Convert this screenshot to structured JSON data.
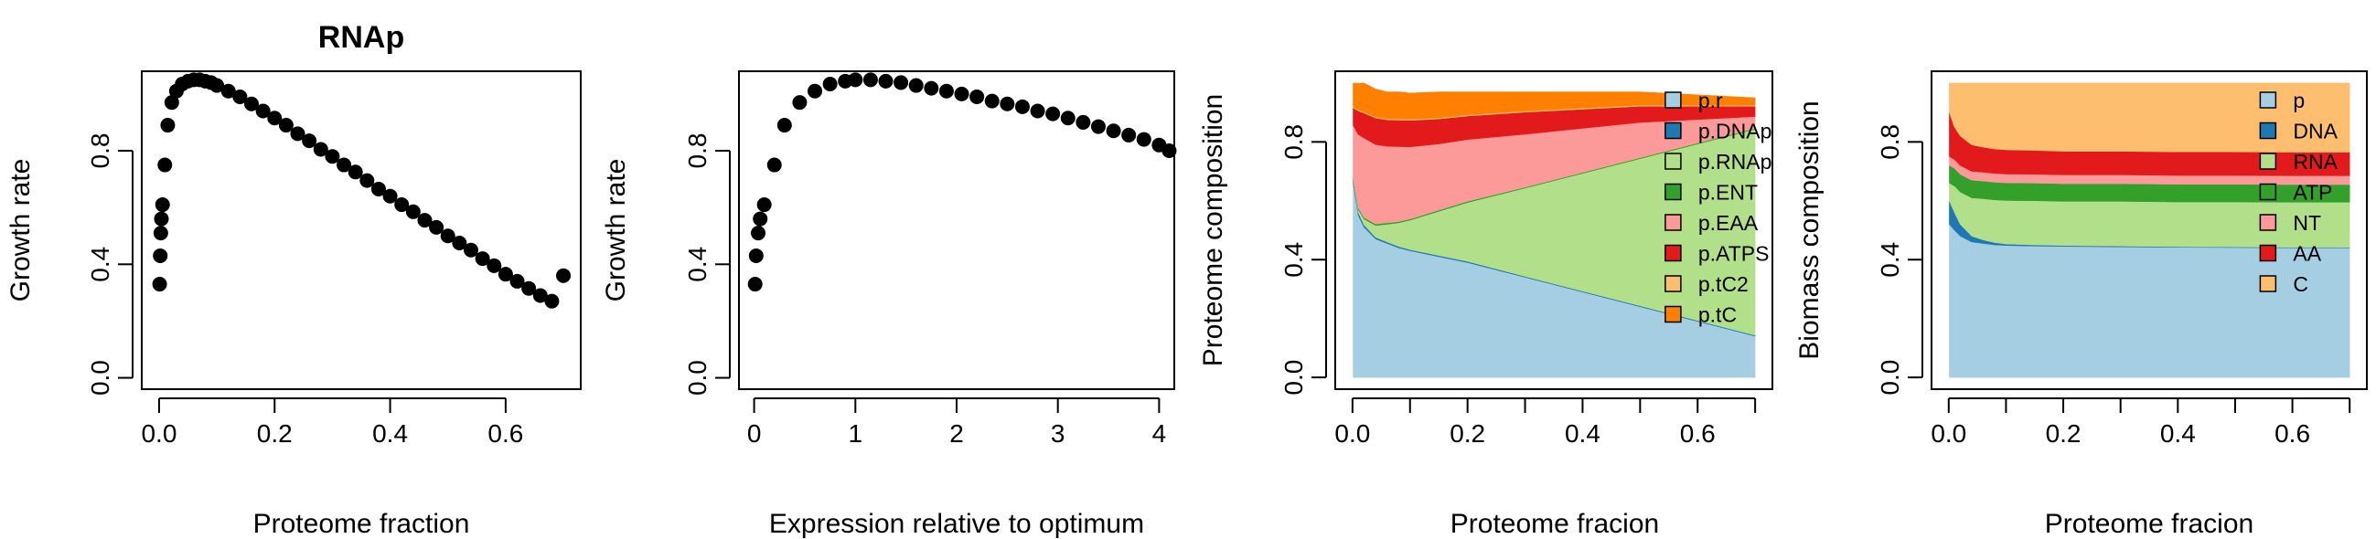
{
  "chart_data": [
    {
      "type": "scatter",
      "title": "RNAp",
      "xlabel": "Proteome fraction",
      "ylabel": "Growth rate",
      "xlim": [
        -0.03,
        0.73
      ],
      "ylim": [
        -0.04,
        1.08
      ],
      "xticks": [
        "0.0",
        "0.2",
        "0.4",
        "0.6"
      ],
      "xtick_values": [
        0,
        0.2,
        0.4,
        0.6
      ],
      "yticks": [
        "0.0",
        "0.4",
        "0.8"
      ],
      "ytick_values": [
        0,
        0.4,
        0.8
      ],
      "x": [
        0.001,
        0.002,
        0.003,
        0.004,
        0.006,
        0.01,
        0.015,
        0.022,
        0.03,
        0.04,
        0.05,
        0.06,
        0.07,
        0.08,
        0.09,
        0.1,
        0.12,
        0.14,
        0.16,
        0.18,
        0.2,
        0.22,
        0.24,
        0.26,
        0.28,
        0.3,
        0.32,
        0.34,
        0.36,
        0.38,
        0.4,
        0.42,
        0.44,
        0.46,
        0.48,
        0.5,
        0.52,
        0.54,
        0.56,
        0.58,
        0.6,
        0.62,
        0.64,
        0.66,
        0.68,
        0.7
      ],
      "y": [
        0.33,
        0.43,
        0.51,
        0.56,
        0.61,
        0.75,
        0.89,
        0.97,
        1.01,
        1.035,
        1.045,
        1.05,
        1.05,
        1.045,
        1.04,
        1.03,
        1.01,
        0.99,
        0.965,
        0.94,
        0.915,
        0.89,
        0.86,
        0.835,
        0.805,
        0.78,
        0.75,
        0.725,
        0.695,
        0.665,
        0.64,
        0.61,
        0.585,
        0.555,
        0.53,
        0.5,
        0.475,
        0.45,
        0.42,
        0.395,
        0.365,
        0.34,
        0.315,
        0.29,
        0.27,
        0.36
      ]
    },
    {
      "type": "scatter",
      "title": "",
      "xlabel": "Expression relative to optimum",
      "ylabel": "Growth rate",
      "xlim": [
        -0.15,
        4.15
      ],
      "ylim": [
        -0.04,
        1.08
      ],
      "xticks": [
        "0",
        "1",
        "2",
        "3",
        "4"
      ],
      "xtick_values": [
        0,
        1,
        2,
        3,
        4
      ],
      "yticks": [
        "0.0",
        "0.4",
        "0.8"
      ],
      "ytick_values": [
        0,
        0.4,
        0.8
      ],
      "x": [
        0.01,
        0.02,
        0.04,
        0.06,
        0.1,
        0.2,
        0.3,
        0.45,
        0.6,
        0.75,
        0.9,
        1.0,
        1.15,
        1.3,
        1.45,
        1.6,
        1.75,
        1.9,
        2.05,
        2.2,
        2.35,
        2.5,
        2.65,
        2.8,
        2.95,
        3.1,
        3.25,
        3.4,
        3.55,
        3.7,
        3.85,
        4.0,
        4.1
      ],
      "y": [
        0.33,
        0.43,
        0.51,
        0.56,
        0.61,
        0.75,
        0.89,
        0.97,
        1.01,
        1.035,
        1.045,
        1.05,
        1.05,
        1.045,
        1.04,
        1.03,
        1.02,
        1.01,
        1.0,
        0.99,
        0.975,
        0.965,
        0.955,
        0.94,
        0.93,
        0.915,
        0.9,
        0.885,
        0.87,
        0.855,
        0.84,
        0.82,
        0.8
      ]
    },
    {
      "type": "area",
      "title": "",
      "xlabel": "Proteome fracion",
      "ylabel": "Proteome composition",
      "xlim": [
        -0.03,
        0.73
      ],
      "ylim": [
        -0.04,
        1.04
      ],
      "xticks": [
        "0.0",
        "0.2",
        "0.4",
        "0.6"
      ],
      "xtick_values": [
        0,
        0.2,
        0.4,
        0.6
      ],
      "xminor_ticks": [
        0.1,
        0.3,
        0.5,
        0.7
      ],
      "yticks": [
        "0.0",
        "0.4",
        "0.8"
      ],
      "ytick_values": [
        0,
        0.4,
        0.8
      ],
      "legend_position": "top-right",
      "x": [
        0.001,
        0.01,
        0.02,
        0.04,
        0.06,
        0.08,
        0.1,
        0.15,
        0.2,
        0.3,
        0.4,
        0.5,
        0.6,
        0.7
      ],
      "series": [
        {
          "name": "p.r",
          "color": "#A6CEE3",
          "values": [
            0.66,
            0.55,
            0.51,
            0.47,
            0.455,
            0.44,
            0.43,
            0.41,
            0.39,
            0.34,
            0.29,
            0.24,
            0.19,
            0.14
          ]
        },
        {
          "name": "p.DNAp",
          "color": "#1F78B4",
          "values": [
            0.01,
            0.01,
            0.008,
            0.006,
            0.005,
            0.005,
            0.004,
            0.004,
            0.004,
            0.003,
            0.003,
            0.003,
            0.003,
            0.003
          ]
        },
        {
          "name": "p.RNAp",
          "color": "#B2DF8A",
          "values": [
            0.001,
            0.01,
            0.02,
            0.04,
            0.06,
            0.08,
            0.1,
            0.15,
            0.2,
            0.3,
            0.4,
            0.5,
            0.6,
            0.7
          ]
        },
        {
          "name": "p.ENT",
          "color": "#33A02C",
          "values": [
            0.005,
            0.005,
            0.005,
            0.005,
            0.005,
            0.004,
            0.004,
            0.004,
            0.004,
            0.003,
            0.003,
            0.003,
            0.003,
            0.003
          ]
        },
        {
          "name": "p.EAA",
          "color": "#FB9A99",
          "values": [
            0.18,
            0.25,
            0.27,
            0.27,
            0.26,
            0.255,
            0.245,
            0.225,
            0.21,
            0.18,
            0.15,
            0.12,
            0.08,
            0.04
          ]
        },
        {
          "name": "p.ATPS",
          "color": "#E31A1C",
          "values": [
            0.06,
            0.08,
            0.085,
            0.09,
            0.09,
            0.09,
            0.09,
            0.085,
            0.08,
            0.075,
            0.065,
            0.055,
            0.045,
            0.035
          ]
        },
        {
          "name": "p.tC2",
          "color": "#FDBF6F",
          "values": [
            0.004,
            0.004,
            0.004,
            0.004,
            0.004,
            0.004,
            0.004,
            0.004,
            0.004,
            0.004,
            0.004,
            0.004,
            0.004,
            0.004
          ]
        },
        {
          "name": "p.tC",
          "color": "#FF7F00",
          "values": [
            0.08,
            0.09,
            0.098,
            0.095,
            0.091,
            0.092,
            0.089,
            0.088,
            0.078,
            0.065,
            0.055,
            0.045,
            0.035,
            0.025
          ]
        }
      ]
    },
    {
      "type": "area",
      "title": "",
      "xlabel": "Proteome fracion",
      "ylabel": "Biomass composition",
      "xlim": [
        -0.03,
        0.73
      ],
      "ylim": [
        -0.04,
        1.04
      ],
      "xticks": [
        "0.0",
        "0.2",
        "0.4",
        "0.6"
      ],
      "xtick_values": [
        0,
        0.2,
        0.4,
        0.6
      ],
      "xminor_ticks": [
        0.1,
        0.3,
        0.5,
        0.7
      ],
      "yticks": [
        "0.0",
        "0.4",
        "0.8"
      ],
      "ytick_values": [
        0,
        0.4,
        0.8
      ],
      "legend_position": "top-right",
      "x": [
        0.001,
        0.01,
        0.02,
        0.04,
        0.06,
        0.08,
        0.1,
        0.15,
        0.2,
        0.3,
        0.4,
        0.5,
        0.6,
        0.7
      ],
      "series": [
        {
          "name": "p",
          "color": "#A6CEE3",
          "values": [
            0.52,
            0.5,
            0.48,
            0.46,
            0.455,
            0.45,
            0.448,
            0.446,
            0.445,
            0.443,
            0.442,
            0.441,
            0.44,
            0.44
          ]
        },
        {
          "name": "DNA",
          "color": "#1F78B4",
          "values": [
            0.08,
            0.06,
            0.04,
            0.02,
            0.012,
            0.008,
            0.005,
            0.004,
            0.003,
            0.003,
            0.002,
            0.002,
            0.002,
            0.002
          ]
        },
        {
          "name": "RNA",
          "color": "#B2DF8A",
          "values": [
            0.06,
            0.09,
            0.11,
            0.13,
            0.14,
            0.145,
            0.148,
            0.15,
            0.15,
            0.152,
            0.152,
            0.153,
            0.153,
            0.153
          ]
        },
        {
          "name": "ATP",
          "color": "#33A02C",
          "values": [
            0.06,
            0.06,
            0.06,
            0.06,
            0.06,
            0.06,
            0.06,
            0.06,
            0.06,
            0.06,
            0.06,
            0.06,
            0.06,
            0.06
          ]
        },
        {
          "name": "NT",
          "color": "#FB9A99",
          "values": [
            0.03,
            0.03,
            0.03,
            0.03,
            0.03,
            0.03,
            0.03,
            0.03,
            0.03,
            0.03,
            0.03,
            0.03,
            0.03,
            0.03
          ]
        },
        {
          "name": "AA",
          "color": "#E31A1C",
          "values": [
            0.15,
            0.11,
            0.1,
            0.09,
            0.085,
            0.083,
            0.082,
            0.081,
            0.08,
            0.08,
            0.08,
            0.08,
            0.08,
            0.08
          ]
        },
        {
          "name": "C",
          "color": "#FDBF6F",
          "values": [
            0.1,
            0.15,
            0.18,
            0.21,
            0.218,
            0.224,
            0.227,
            0.229,
            0.232,
            0.232,
            0.234,
            0.234,
            0.235,
            0.235
          ]
        }
      ]
    }
  ]
}
